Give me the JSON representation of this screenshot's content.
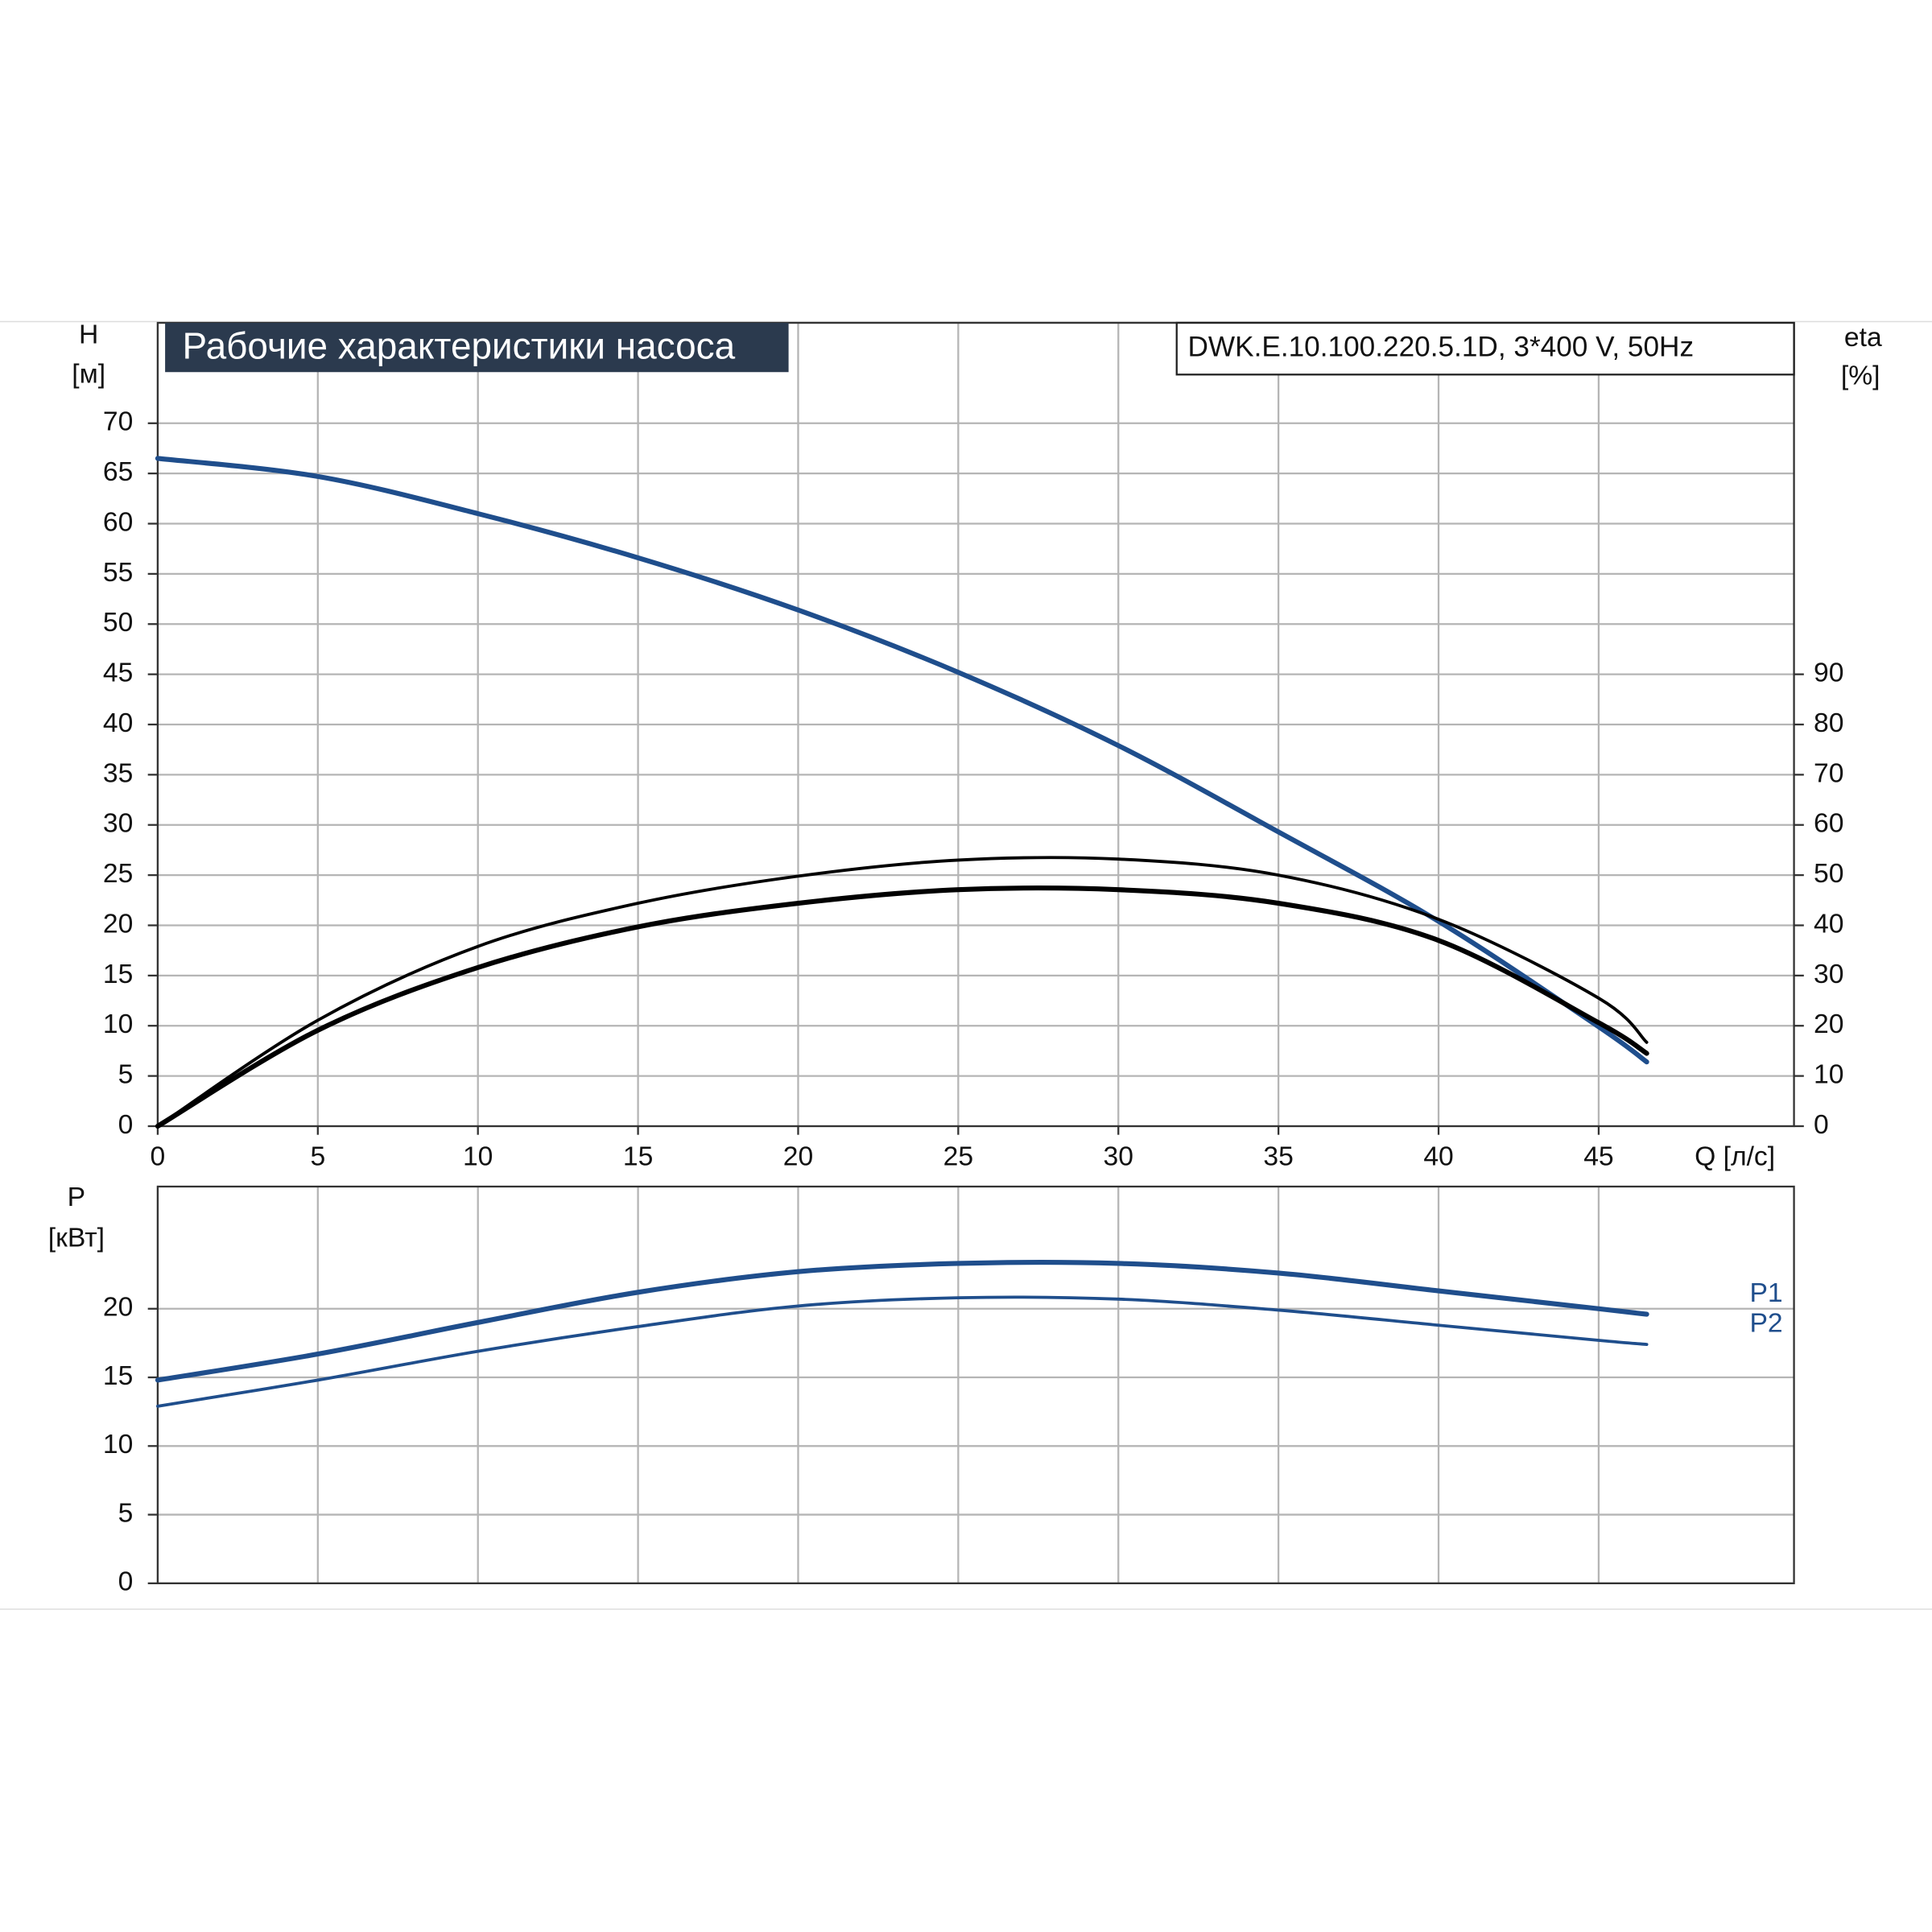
{
  "chart_data": [
    {
      "type": "line",
      "title": "Рабочие характеристики насоса",
      "subtitle": "DWK.E.10.100.220.5.1D, 3*400 V, 50Hz",
      "ylabel": [
        "H",
        "[м]"
      ],
      "y2label": [
        "eta",
        "[%]"
      ],
      "xlabel": "Q [л/с]",
      "x": [
        0,
        5,
        10,
        15,
        20,
        25,
        30,
        35,
        40,
        45,
        46.5
      ],
      "xlim": [
        0,
        51.1
      ],
      "xticks": [
        0,
        5,
        10,
        15,
        20,
        25,
        30,
        35,
        40,
        45
      ],
      "ylim": [
        0,
        80
      ],
      "yticks": [
        0,
        5,
        10,
        15,
        20,
        25,
        30,
        35,
        40,
        45,
        50,
        55,
        60,
        65,
        70
      ],
      "y2lim": [
        0,
        160
      ],
      "y2ticks": [
        0,
        10,
        20,
        30,
        40,
        50,
        60,
        70,
        80,
        90
      ],
      "grid": true,
      "series": [
        {
          "color": "#1f4e8c",
          "line_width": 4,
          "values": [
            66.5,
            64.7,
            61,
            56.6,
            51.4,
            45.2,
            37.9,
            29.3,
            20.4,
            9.9,
            6.4
          ]
        },
        {
          "color": "#000000",
          "line_width": 2.5,
          "axis": "y2",
          "values": [
            0,
            21.1,
            35.8,
            44.4,
            49.8,
            53,
            53.2,
            50,
            41.2,
            25.5,
            16.7
          ]
        },
        {
          "color": "#000000",
          "line_width": 4,
          "axis": "y2",
          "values": [
            0,
            19.1,
            31.6,
            39.7,
            44.4,
            47.1,
            47.1,
            44.4,
            37,
            20.6,
            14.5
          ]
        }
      ]
    },
    {
      "type": "line",
      "ylabel": [
        "P",
        "[кВт]"
      ],
      "x": [
        0,
        5,
        10,
        15,
        20,
        25,
        30,
        35,
        40,
        45,
        46.5
      ],
      "ylim": [
        0,
        28.9
      ],
      "yticks": [
        0,
        5,
        10,
        15,
        20
      ],
      "grid": true,
      "series": [
        {
          "name": "P1",
          "color": "#1f4e8c",
          "line_width": 4,
          "values": [
            14.8,
            16.7,
            19.0,
            21.2,
            22.7,
            23.3,
            23.3,
            22.6,
            21.3,
            20.0,
            19.6
          ]
        },
        {
          "name": "P2",
          "color": "#1f4e8c",
          "line_width": 2.5,
          "values": [
            12.9,
            14.8,
            16.9,
            18.7,
            20.2,
            20.8,
            20.7,
            19.9,
            18.8,
            17.7,
            17.4
          ]
        }
      ]
    }
  ]
}
